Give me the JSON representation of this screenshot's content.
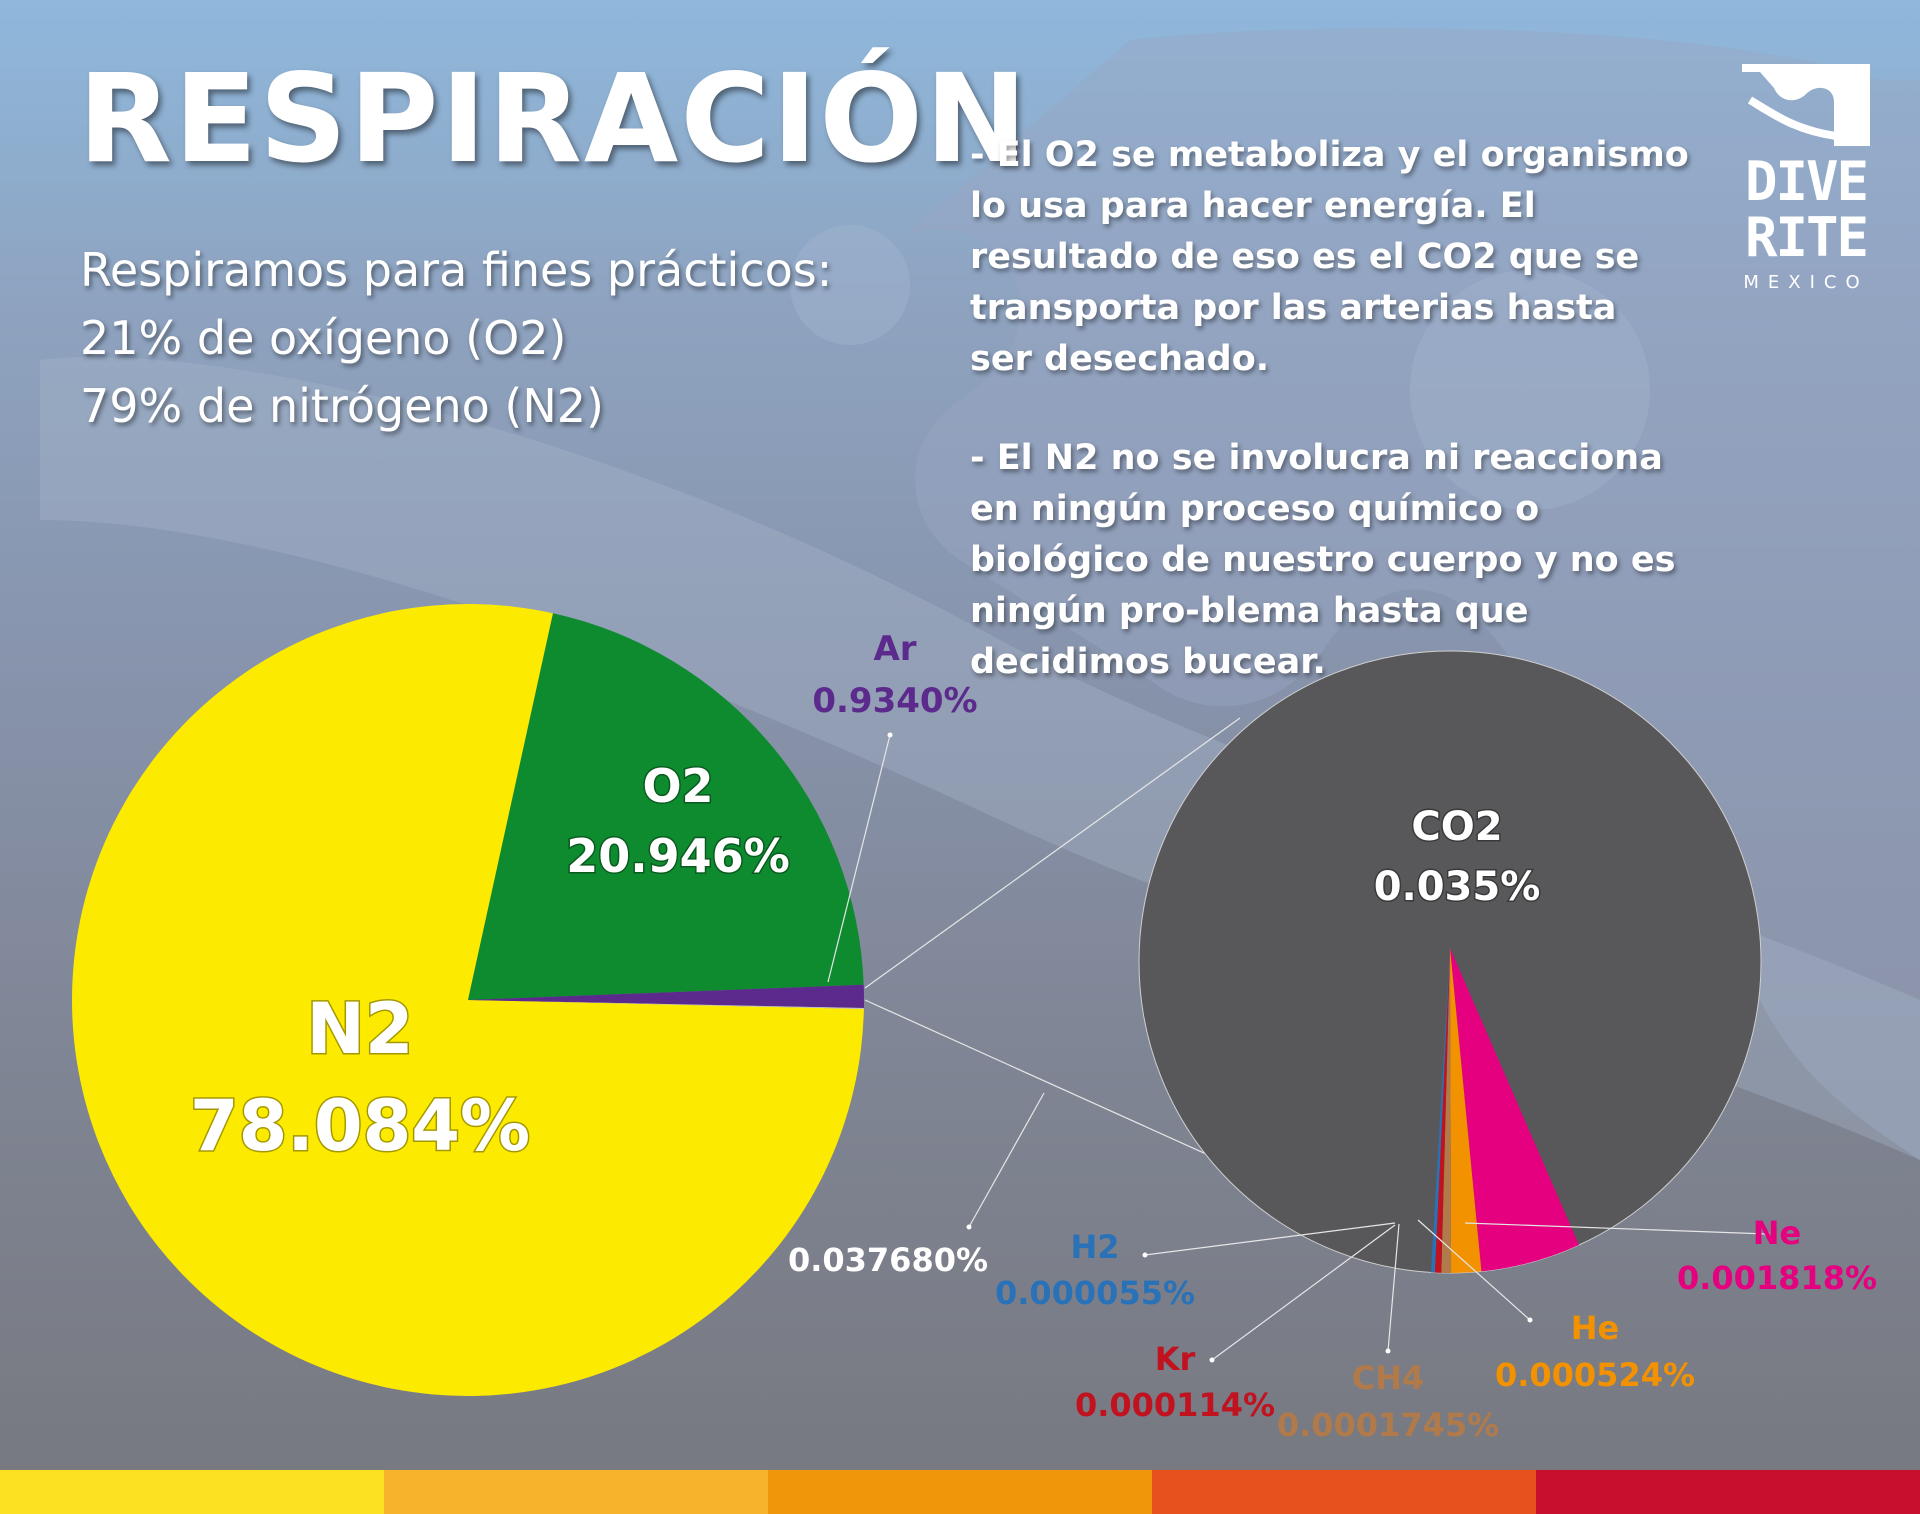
{
  "title": "RESPIRACIÓN",
  "intro": {
    "line1": "Respiramos para fines prácticos:",
    "line2": "21% de oxígeno (O2)",
    "line3": "79% de nitrógeno (N2)"
  },
  "notes": {
    "p1": "- El O2 se metaboliza y el organismo lo usa para hacer energía. El resultado de eso es el CO2 que se transporta por las arterias hasta ser desechado.",
    "p2": "- El N2 no se involucra ni reacciona en ningún proceso químico o biológico de nuestro cuerpo y no es ningún pro-blema hasta que decidimos bucear."
  },
  "logo": {
    "line1": "DIVE",
    "line2": "RITE",
    "line3": "MEXICO"
  },
  "colors": {
    "n2": "#fcea00",
    "o2": "#0e8a2f",
    "ar": "#5c2a8c",
    "other": "#c9c9c9",
    "co2": "#58585a",
    "ne": "#e4007f",
    "he": "#f39200",
    "ch4": "#b07a4a",
    "kr": "#c1121f",
    "h2": "#2a72b8",
    "stripes": [
      "#fbe122",
      "#f7b32b",
      "#f0960a",
      "#e6511e",
      "#c8102e"
    ]
  },
  "chart_data": [
    {
      "type": "pie",
      "title": "",
      "slices": [
        {
          "name": "N2",
          "label": "N2",
          "value_label": "78.084%",
          "value": 78.084,
          "color": "#fcea00"
        },
        {
          "name": "O2",
          "label": "O2",
          "value_label": "20.946%",
          "value": 20.946,
          "color": "#0e8a2f"
        },
        {
          "name": "Ar",
          "label": "Ar",
          "value_label": "0.9340%",
          "value": 0.934,
          "color": "#5c2a8c"
        },
        {
          "name": "other",
          "label": "",
          "value_label": "0.037680%",
          "value": 0.03768,
          "color": "#c9c9c9"
        }
      ]
    },
    {
      "type": "pie",
      "title": "",
      "slices": [
        {
          "name": "CO2",
          "label": "CO2",
          "value_label": "0.035%",
          "value": 0.035,
          "color": "#58585a"
        },
        {
          "name": "Ne",
          "label": "Ne",
          "value_label": "0.001818%",
          "value": 0.001818,
          "color": "#e4007f"
        },
        {
          "name": "He",
          "label": "He",
          "value_label": "0.000524%",
          "value": 0.000524,
          "color": "#f39200"
        },
        {
          "name": "CH4",
          "label": "CH4",
          "value_label": "0.0001745%",
          "value": 0.0001745,
          "color": "#b07a4a"
        },
        {
          "name": "Kr",
          "label": "Kr",
          "value_label": "0.000114%",
          "value": 0.000114,
          "color": "#c1121f"
        },
        {
          "name": "H2",
          "label": "H2",
          "value_label": "0.000055%",
          "value": 5.5e-05,
          "color": "#2a72b8"
        }
      ]
    }
  ]
}
